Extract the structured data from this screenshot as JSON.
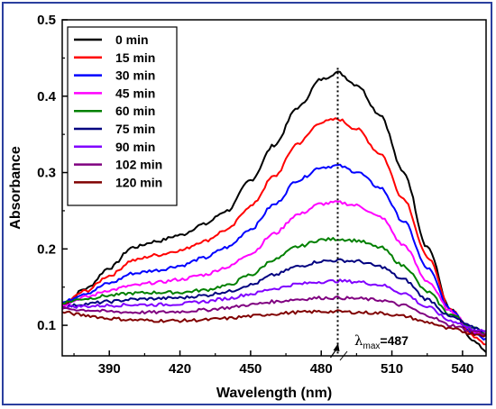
{
  "chart_data": {
    "type": "line",
    "xlabel": "Wavelength (nm)",
    "ylabel": "Absorbance",
    "xlim": [
      370,
      550
    ],
    "ylim": [
      0.06,
      0.5
    ],
    "xticks": [
      390,
      420,
      450,
      480,
      510,
      540
    ],
    "yticks": [
      0.1,
      0.2,
      0.3,
      0.4,
      0.5
    ],
    "legend_position": "top-left",
    "annotation": {
      "symbol": "λ",
      "subscript": "max",
      "value_text": "=487",
      "x": 487
    },
    "x": [
      370,
      380,
      390,
      400,
      410,
      420,
      430,
      440,
      450,
      460,
      470,
      480,
      487,
      495,
      505,
      515,
      525,
      535,
      545,
      550
    ],
    "series": [
      {
        "name": "0 min",
        "color": "#000000",
        "values": [
          0.127,
          0.148,
          0.175,
          0.202,
          0.21,
          0.218,
          0.232,
          0.25,
          0.29,
          0.336,
          0.385,
          0.422,
          0.431,
          0.415,
          0.376,
          0.3,
          0.203,
          0.12,
          0.078,
          0.065
        ]
      },
      {
        "name": "15 min",
        "color": "#ff0000",
        "values": [
          0.128,
          0.145,
          0.165,
          0.185,
          0.192,
          0.198,
          0.21,
          0.225,
          0.256,
          0.295,
          0.338,
          0.366,
          0.37,
          0.357,
          0.325,
          0.266,
          0.19,
          0.121,
          0.086,
          0.076
        ]
      },
      {
        "name": "30 min",
        "color": "#0000ff",
        "values": [
          0.13,
          0.142,
          0.155,
          0.168,
          0.172,
          0.178,
          0.188,
          0.202,
          0.226,
          0.258,
          0.29,
          0.307,
          0.309,
          0.301,
          0.28,
          0.236,
          0.175,
          0.12,
          0.09,
          0.082
        ]
      },
      {
        "name": "45 min",
        "color": "#ff00ff",
        "values": [
          0.127,
          0.137,
          0.146,
          0.152,
          0.156,
          0.16,
          0.166,
          0.176,
          0.194,
          0.22,
          0.245,
          0.259,
          0.261,
          0.257,
          0.242,
          0.205,
          0.158,
          0.118,
          0.092,
          0.086
        ]
      },
      {
        "name": "60 min",
        "color": "#008000",
        "values": [
          0.13,
          0.135,
          0.139,
          0.142,
          0.143,
          0.143,
          0.146,
          0.152,
          0.166,
          0.186,
          0.203,
          0.212,
          0.213,
          0.211,
          0.202,
          0.178,
          0.144,
          0.114,
          0.096,
          0.089
        ]
      },
      {
        "name": "75 min",
        "color": "#000080",
        "values": [
          0.124,
          0.128,
          0.131,
          0.134,
          0.135,
          0.136,
          0.139,
          0.144,
          0.153,
          0.166,
          0.177,
          0.184,
          0.185,
          0.184,
          0.177,
          0.16,
          0.134,
          0.111,
          0.097,
          0.091
        ]
      },
      {
        "name": "90 min",
        "color": "#8000ff",
        "values": [
          0.124,
          0.125,
          0.126,
          0.127,
          0.127,
          0.128,
          0.131,
          0.135,
          0.141,
          0.148,
          0.154,
          0.157,
          0.158,
          0.157,
          0.153,
          0.142,
          0.124,
          0.106,
          0.095,
          0.091
        ]
      },
      {
        "name": "102 min",
        "color": "#800080",
        "values": [
          0.122,
          0.12,
          0.118,
          0.117,
          0.117,
          0.118,
          0.12,
          0.123,
          0.127,
          0.131,
          0.134,
          0.136,
          0.136,
          0.135,
          0.133,
          0.126,
          0.113,
          0.1,
          0.092,
          0.089
        ]
      },
      {
        "name": "120 min",
        "color": "#800000",
        "values": [
          0.117,
          0.113,
          0.109,
          0.107,
          0.106,
          0.106,
          0.107,
          0.109,
          0.112,
          0.115,
          0.117,
          0.118,
          0.118,
          0.117,
          0.116,
          0.112,
          0.104,
          0.095,
          0.089,
          0.087
        ]
      }
    ]
  }
}
